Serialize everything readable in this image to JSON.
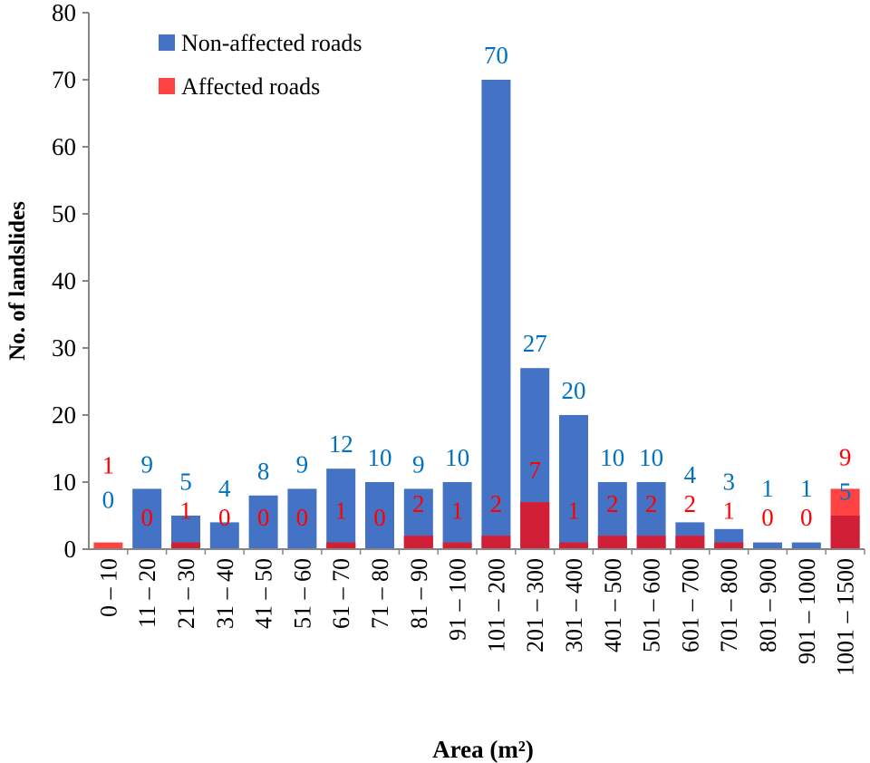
{
  "chart_data": {
    "type": "bar",
    "xlabel": "Area (m²)",
    "ylabel": "No. of landslides",
    "ylim": [
      0,
      80
    ],
    "yticks": [
      0,
      10,
      20,
      30,
      40,
      50,
      60,
      70,
      80
    ],
    "grid": false,
    "legend_position": "top-left",
    "categories": [
      "0 – 10",
      "11 – 20",
      "21 – 30",
      "31 – 40",
      "41 – 50",
      "51 – 60",
      "61 – 70",
      "71 – 80",
      "81 – 90",
      "91 – 100",
      "101 – 200",
      "201 – 300",
      "301 – 400",
      "401 – 500",
      "501 – 600",
      "601 – 700",
      "701 – 800",
      "801 – 900",
      "901 – 1000",
      "1001 – 1500"
    ],
    "series": [
      {
        "name": "Non-affected roads",
        "color": "#4472C4",
        "label_color": "#0070C0",
        "values": [
          0,
          9,
          5,
          4,
          8,
          9,
          12,
          10,
          9,
          10,
          70,
          27,
          20,
          10,
          10,
          4,
          3,
          1,
          1,
          5
        ]
      },
      {
        "name": "Affected roads",
        "color": "#FF4343",
        "overlap_color": "#D01F36",
        "label_color": "#FF0000",
        "values": [
          1,
          0,
          1,
          0,
          0,
          0,
          1,
          0,
          2,
          1,
          2,
          7,
          1,
          2,
          2,
          2,
          1,
          0,
          0,
          9
        ]
      }
    ]
  }
}
